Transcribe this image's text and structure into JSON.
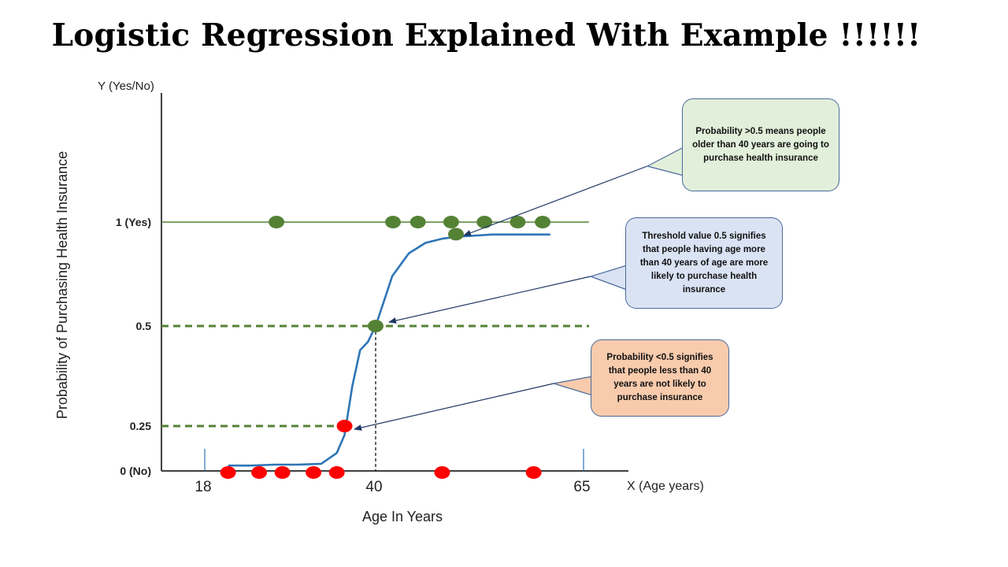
{
  "title": "Logistic Regression Explained With Example !!!!!!",
  "axes": {
    "y_axis_title": "Y (Yes/No)",
    "y_axis_label": "Probability of Purchasing Health Insurance",
    "x_axis_title": "X (Age years)",
    "x_axis_label": "Age In Years",
    "y_ticks": [
      {
        "value": 1,
        "label": "1 (Yes)"
      },
      {
        "value": 0.5,
        "label": "0.5"
      },
      {
        "value": 0.25,
        "label": "0.25"
      },
      {
        "value": 0,
        "label": "0 (No)"
      }
    ],
    "x_ticks": [
      {
        "value": 18,
        "label": "18"
      },
      {
        "value": 40,
        "label": "40"
      },
      {
        "value": 65,
        "label": "65"
      }
    ]
  },
  "callouts": {
    "green": "Probability >0.5 means people older than 40 years are going to purchase health insurance",
    "blue": "Threshold value 0.5 signifies that  people having age more than 40 years of age are more likely to purchase health insurance",
    "orange": "Probability <0.5 signifies that  people less than 40 years are not likely to purchase insurance"
  },
  "colors": {
    "yes_points": "#548235",
    "no_points": "#ff0000",
    "curve": "#2e75b6",
    "threshold_line": "#548235",
    "axis": "#000000"
  },
  "chart_data": {
    "type": "scatter",
    "x_range": [
      18,
      65
    ],
    "y_range": [
      0,
      1
    ],
    "yes_points_y1": [
      25,
      40,
      43,
      47,
      51,
      55,
      58
    ],
    "no_points_y0": [
      21,
      25,
      28,
      32,
      35,
      48,
      59
    ],
    "marked_points": [
      {
        "x": 42,
        "y": 0.9,
        "color": "green"
      },
      {
        "x": 40,
        "y": 0.5,
        "color": "green"
      },
      {
        "x": 36,
        "y": 0.25,
        "color": "red"
      }
    ],
    "threshold_lines": [
      0.5,
      0.25
    ],
    "curve": [
      [
        21,
        0.03
      ],
      [
        24,
        0.03
      ],
      [
        27,
        0.035
      ],
      [
        30,
        0.035
      ],
      [
        33,
        0.04
      ],
      [
        35,
        0.1
      ],
      [
        36,
        0.2
      ],
      [
        37,
        0.35
      ],
      [
        38,
        0.44
      ],
      [
        39,
        0.46
      ],
      [
        40,
        0.5
      ],
      [
        41,
        0.62
      ],
      [
        42,
        0.74
      ],
      [
        44,
        0.85
      ],
      [
        46,
        0.9
      ],
      [
        48,
        0.92
      ],
      [
        50,
        0.93
      ],
      [
        54,
        0.94
      ],
      [
        58,
        0.94
      ],
      [
        61,
        0.94
      ]
    ],
    "curve_series_label": "",
    "grid": false
  }
}
